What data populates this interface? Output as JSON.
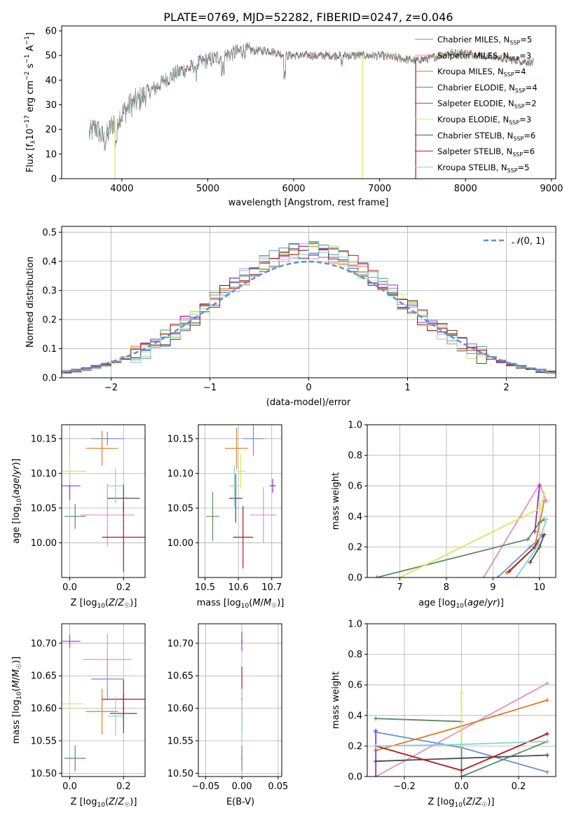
{
  "figure": {
    "title": "PLATE=0769, MJD=52282, FIBERID=0247, z=0.046"
  },
  "colors": {
    "models": [
      "#6a8fd9",
      "#e38fc2",
      "#e07b20",
      "#5b8a61",
      "#9b30c9",
      "#d8e85a",
      "#4a4a4a",
      "#b41818",
      "#7fd6d6"
    ],
    "normal_curve": "#5b8fd6"
  },
  "chart_data": [
    {
      "id": "spectrum",
      "type": "line",
      "xlabel": "wavelength [Angstrom, rest frame]",
      "ylabel": "Flux [f_λ 10^-17 erg cm^-2 s^-1 A^-1]",
      "xlim": [
        3300,
        9050
      ],
      "ylim": [
        0,
        62
      ],
      "xticks": [
        4000,
        5000,
        6000,
        7000,
        8000,
        9000
      ],
      "yticks": [
        0,
        10,
        20,
        30,
        40,
        50,
        60
      ],
      "grid": false,
      "legend_position": "top-right",
      "legend": [
        "Chabrier MILES, N_SSP=5",
        "Salpeter MILES, N_SSP=3",
        "Kroupa MILES, N_SSP=4",
        "Chabrier ELODIE, N_SSP=4",
        "Salpeter ELODIE, N_SSP=2",
        "Kroupa ELODIE, N_SSP=3",
        "Chabrier STELIB, N_SSP=6",
        "Salpeter STELIB, N_SSP=6",
        "Kroupa STELIB, N_SSP=5"
      ],
      "continuum": {
        "x": [
          3620,
          3700,
          3800,
          3900,
          4000,
          4100,
          4200,
          4300,
          4400,
          4500,
          4600,
          4700,
          4800,
          4900,
          5000,
          5100,
          5200,
          5300,
          5400,
          5500,
          5600,
          5700,
          5800,
          5900,
          6000,
          6200,
          6400,
          6600,
          6800,
          7000,
          7200,
          7400,
          7600,
          7800,
          8000,
          8200,
          8400,
          8600,
          8800
        ],
        "y": [
          18,
          21,
          15,
          23,
          26,
          30,
          32,
          35,
          37,
          40,
          42,
          44,
          45,
          47,
          48,
          49,
          50,
          51,
          52,
          52,
          52,
          52,
          51,
          50,
          50,
          50,
          50,
          50,
          50,
          50,
          49,
          48,
          49,
          51,
          51,
          50,
          49,
          48,
          47
        ]
      },
      "vertical_drops": [
        {
          "x": 3920,
          "series": "Kroupa ELODIE, N_SSP=3"
        },
        {
          "x": 6800,
          "series": "Kroupa ELODIE, N_SSP=3"
        },
        {
          "x": 7420,
          "series": "Salpeter STELIB, N_SSP=6"
        }
      ]
    },
    {
      "id": "residuals",
      "type": "step",
      "xlabel": "(data-model)/error",
      "ylabel": "Normed distribution",
      "xlim": [
        -2.5,
        2.5
      ],
      "ylim": [
        0,
        0.52
      ],
      "xticks": [
        -2,
        -1,
        0,
        1,
        2
      ],
      "yticks": [
        0.0,
        0.1,
        0.2,
        0.3,
        0.4,
        0.5
      ],
      "grid": true,
      "legend_position": "top-right",
      "legend": [
        "N(0,1)"
      ],
      "bin_width": 0.1
    },
    {
      "id": "z_age",
      "type": "errorbar",
      "xlabel": "Z [log10(Z/Z☉)]",
      "ylabel": "age [log10(age/yr)]",
      "xlim": [
        -0.03,
        0.28
      ],
      "ylim": [
        9.95,
        10.17
      ],
      "xticks": [
        0.0,
        0.2
      ],
      "yticks": [
        10.0,
        10.05,
        10.1,
        10.15
      ],
      "grid": true,
      "points": [
        {
          "x": 0.14,
          "xerr": 0.06,
          "y": 10.15,
          "yerr": 0.01
        },
        {
          "x": 0.14,
          "xerr": 0.1,
          "y": 10.04,
          "yerr": 0.045
        },
        {
          "x": 0.12,
          "xerr": 0.06,
          "y": 10.136,
          "yerr": 0.025
        },
        {
          "x": 0.02,
          "xerr": 0.04,
          "y": 10.038,
          "yerr": 0.018
        },
        {
          "x": 0.0,
          "xerr": 0.04,
          "y": 10.082,
          "yerr": 0.02
        },
        {
          "x": 0.0,
          "xerr": 0.06,
          "y": 10.103,
          "yerr": 0.02
        },
        {
          "x": 0.2,
          "xerr": 0.06,
          "y": 10.064,
          "yerr": 0.02
        },
        {
          "x": 0.2,
          "xerr": 0.08,
          "y": 10.008,
          "yerr": 0.05
        },
        {
          "x": 0.17,
          "xerr": 0.03,
          "y": 10.082,
          "yerr": 0.025
        }
      ]
    },
    {
      "id": "mass_age",
      "type": "errorbar",
      "xlabel": "mass [log10(M/M☉)]",
      "ylabel": "",
      "xlim": [
        10.48,
        10.73
      ],
      "ylim": [
        9.95,
        10.17
      ],
      "xticks": [
        10.5,
        10.6,
        10.7
      ],
      "yticks": [
        10.0,
        10.05,
        10.1,
        10.15
      ],
      "grid": true,
      "points": [
        {
          "x": 10.645,
          "xerr": 0.03,
          "y": 10.15,
          "yerr": 0.025
        },
        {
          "x": 10.675,
          "xerr": 0.04,
          "y": 10.04,
          "yerr": 0.04
        },
        {
          "x": 10.595,
          "xerr": 0.035,
          "y": 10.136,
          "yerr": 0.03
        },
        {
          "x": 10.523,
          "xerr": 0.02,
          "y": 10.038,
          "yerr": 0.035
        },
        {
          "x": 10.703,
          "xerr": 0.01,
          "y": 10.082,
          "yerr": 0.01
        },
        {
          "x": 10.607,
          "xerr": 0.015,
          "y": 10.103,
          "yerr": 0.025
        },
        {
          "x": 10.592,
          "xerr": 0.02,
          "y": 10.064,
          "yerr": 0.035
        },
        {
          "x": 10.614,
          "xerr": 0.03,
          "y": 10.008,
          "yerr": 0.045
        },
        {
          "x": 10.588,
          "xerr": 0.015,
          "y": 10.082,
          "yerr": 0.03
        }
      ]
    },
    {
      "id": "weight_age",
      "type": "line",
      "xlabel": "age [log10(age/yr)]",
      "ylabel": "mass weight",
      "xlim": [
        6.3,
        10.35
      ],
      "ylim": [
        0,
        1.0
      ],
      "xticks": [
        7,
        8,
        9,
        10
      ],
      "yticks": [
        0.0,
        0.2,
        0.4,
        0.6,
        0.8,
        1.0
      ],
      "grid": true,
      "series": [
        {
          "points": [
            [
              9.1,
              0.0
            ],
            [
              9.8,
              0.2
            ],
            [
              10.1,
              0.28
            ]
          ]
        },
        {
          "points": [
            [
              8.8,
              0.0
            ],
            [
              10.0,
              0.61
            ],
            [
              10.15,
              0.5
            ]
          ]
        },
        {
          "points": [
            [
              9.3,
              0.03
            ],
            [
              9.9,
              0.2
            ],
            [
              10.1,
              0.5
            ]
          ]
        },
        {
          "points": [
            [
              6.5,
              0.0
            ],
            [
              9.75,
              0.25
            ],
            [
              10.0,
              0.36
            ],
            [
              10.1,
              0.38
            ]
          ]
        },
        {
          "points": [
            [
              9.9,
              0.3
            ],
            [
              10.0,
              0.6
            ]
          ]
        },
        {
          "points": [
            [
              7.0,
              0.0
            ],
            [
              10.0,
              0.45
            ],
            [
              10.1,
              0.55
            ]
          ]
        },
        {
          "points": [
            [
              9.8,
              0.1
            ],
            [
              10.0,
              0.2
            ],
            [
              10.1,
              0.28
            ]
          ]
        },
        {
          "points": [
            [
              9.35,
              0.04
            ],
            [
              9.9,
              0.2
            ],
            [
              10.05,
              0.28
            ]
          ]
        },
        {
          "points": [
            [
              9.5,
              0.0
            ],
            [
              9.95,
              0.2
            ],
            [
              10.15,
              0.38
            ]
          ]
        }
      ]
    },
    {
      "id": "z_mass",
      "type": "errorbar",
      "xlabel": "Z [log10(Z/Z☉)]",
      "ylabel": "mass [log10(M/M☉)]",
      "xlim": [
        -0.03,
        0.28
      ],
      "ylim": [
        10.495,
        10.73
      ],
      "xticks": [
        0.0,
        0.2
      ],
      "yticks": [
        10.5,
        10.55,
        10.6,
        10.65,
        10.7
      ],
      "grid": true,
      "points": [
        {
          "x": 0.14,
          "xerr": 0.06,
          "y": 10.645,
          "yerr": 0.03
        },
        {
          "x": 0.14,
          "xerr": 0.09,
          "y": 10.675,
          "yerr": 0.04
        },
        {
          "x": 0.12,
          "xerr": 0.06,
          "y": 10.595,
          "yerr": 0.035
        },
        {
          "x": 0.02,
          "xerr": 0.04,
          "y": 10.523,
          "yerr": 0.02
        },
        {
          "x": 0.0,
          "xerr": 0.04,
          "y": 10.703,
          "yerr": 0.01
        },
        {
          "x": 0.0,
          "xerr": 0.05,
          "y": 10.607,
          "yerr": 0.015
        },
        {
          "x": 0.2,
          "xerr": 0.05,
          "y": 10.592,
          "yerr": 0.03
        },
        {
          "x": 0.2,
          "xerr": 0.08,
          "y": 10.614,
          "yerr": 0.03
        },
        {
          "x": 0.17,
          "xerr": 0.03,
          "y": 10.588,
          "yerr": 0.03
        }
      ]
    },
    {
      "id": "ebv_mass",
      "type": "errorbar",
      "xlabel": "E(B-V)",
      "ylabel": "",
      "xlim": [
        -0.06,
        0.055
      ],
      "ylim": [
        10.495,
        10.73
      ],
      "xticks": [
        -0.05,
        0.0,
        0.05
      ],
      "yticks": [
        10.5,
        10.55,
        10.6,
        10.65,
        10.7
      ],
      "grid": true,
      "points": [
        {
          "x": 0.0,
          "y": 10.703,
          "yerr": 0.015
        },
        {
          "x": 0.0,
          "y": 10.614,
          "yerr": 0.05
        },
        {
          "x": 0.0,
          "y": 10.59,
          "yerr": 0.04
        },
        {
          "x": 0.0,
          "y": 10.523,
          "yerr": 0.02
        }
      ]
    },
    {
      "id": "weight_z",
      "type": "line",
      "xlabel": "Z [log10(Z/Z☉)]",
      "ylabel": "mass weight",
      "xlim": [
        -0.33,
        0.33
      ],
      "ylim": [
        0,
        1.0
      ],
      "xticks": [
        -0.2,
        0.0,
        0.2
      ],
      "yticks": [
        0.0,
        0.2,
        0.4,
        0.6,
        0.8,
        1.0
      ],
      "grid": true,
      "series": [
        {
          "points": [
            [
              -0.3,
              0.29
            ],
            [
              0.0,
              0.19
            ],
            [
              0.3,
              0.03
            ]
          ]
        },
        {
          "points": [
            [
              -0.3,
              0.0
            ],
            [
              0.3,
              0.61
            ]
          ]
        },
        {
          "points": [
            [
              -0.3,
              0.17
            ],
            [
              0.0,
              0.33
            ],
            [
              0.3,
              0.5
            ]
          ]
        },
        {
          "points": [
            [
              -0.3,
              0.38
            ],
            [
              0.0,
              0.36
            ],
            [
              0.0,
              0.0
            ],
            [
              0.3,
              0.23
            ]
          ]
        },
        {
          "points": [
            [
              -0.3,
              0.3
            ],
            [
              -0.3,
              0.0
            ]
          ]
        },
        {
          "points": [
            [
              0.0,
              0.55
            ],
            [
              0.0,
              0.2
            ]
          ]
        },
        {
          "points": [
            [
              -0.3,
              0.1
            ],
            [
              0.3,
              0.14
            ]
          ]
        },
        {
          "points": [
            [
              -0.3,
              0.2
            ],
            [
              0.0,
              0.04
            ],
            [
              0.3,
              0.28
            ]
          ]
        },
        {
          "points": [
            [
              -0.3,
              0.2
            ],
            [
              0.0,
              0.21
            ],
            [
              0.3,
              0.23
            ]
          ]
        }
      ]
    }
  ]
}
